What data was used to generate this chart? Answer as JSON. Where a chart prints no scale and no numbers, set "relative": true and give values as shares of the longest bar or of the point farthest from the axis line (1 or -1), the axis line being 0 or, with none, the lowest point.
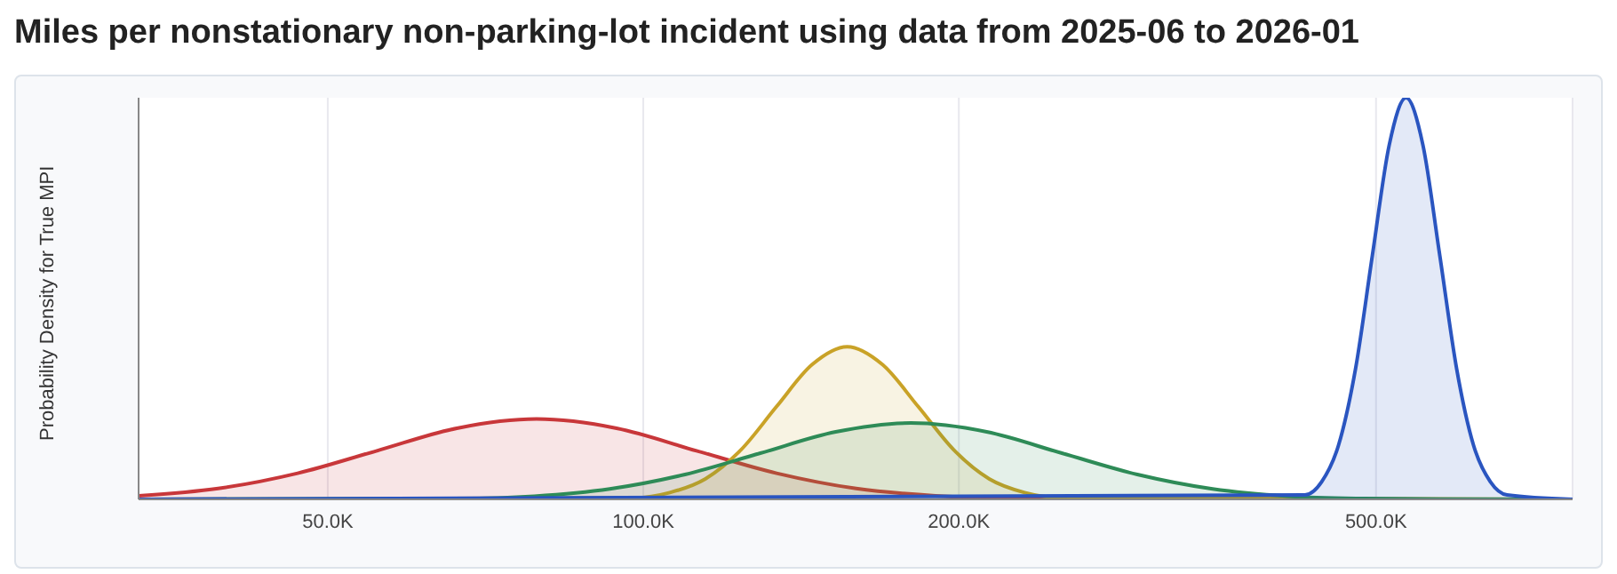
{
  "chart_data": {
    "type": "area",
    "title": "Miles per nonstationary non-parking-lot incident using data from 2025-06 to 2026-01",
    "ylabel": "Probability Density for True MPI",
    "relative": true,
    "log": "x",
    "grid": "x",
    "xlim": [
      33000,
      770000
    ],
    "xticks": [
      {
        "value": 50000,
        "label": "50.0K"
      },
      {
        "value": 100000,
        "label": "100.0K"
      },
      {
        "value": 200000,
        "label": "200.0K"
      },
      {
        "value": 500000,
        "label": "500.0K"
      }
    ],
    "series": [
      {
        "color": "#c8373a",
        "x": [
          33000,
          39300,
          46800,
          55700,
          66400,
          79100,
          94300,
          112400,
          134000,
          159600,
          190000,
          226600,
          270000,
          322000,
          770000
        ],
        "values": [
          0.009,
          0.027,
          0.065,
          0.121,
          0.177,
          0.2,
          0.177,
          0.121,
          0.065,
          0.027,
          0.009,
          0.002,
          0.0004,
          0,
          0
        ]
      },
      {
        "color": "#c9a227",
        "x": [
          33000,
          98100,
          106000,
          114600,
          123900,
          134000,
          144800,
          156500,
          169200,
          182900,
          197800,
          213800,
          231100,
          249800,
          770000
        ],
        "values": [
          0,
          0.004,
          0.017,
          0.051,
          0.123,
          0.231,
          0.335,
          0.38,
          0.335,
          0.231,
          0.123,
          0.051,
          0.017,
          0.004,
          0
        ]
      },
      {
        "color": "#2e8b57",
        "x": [
          33000,
          66700,
          78700,
          92900,
          109600,
          129300,
          152600,
          180000,
          212600,
          250800,
          296000,
          349200,
          412200,
          486400,
          574000,
          770000
        ],
        "values": [
          0,
          0.002,
          0.008,
          0.026,
          0.062,
          0.115,
          0.168,
          0.19,
          0.168,
          0.115,
          0.062,
          0.026,
          0.008,
          0.002,
          0.0004,
          0
        ]
      },
      {
        "color": "#2a55c0",
        "x": [
          33000,
          427700,
          443800,
          460500,
          478000,
          496000,
          514700,
          534100,
          554300,
          575200,
          596900,
          619400,
          642700,
          666800,
          770000
        ],
        "values": [
          0,
          0.011,
          0.044,
          0.135,
          0.325,
          0.607,
          0.882,
          1,
          0.882,
          0.607,
          0.325,
          0.135,
          0.044,
          0.011,
          0
        ]
      }
    ]
  }
}
